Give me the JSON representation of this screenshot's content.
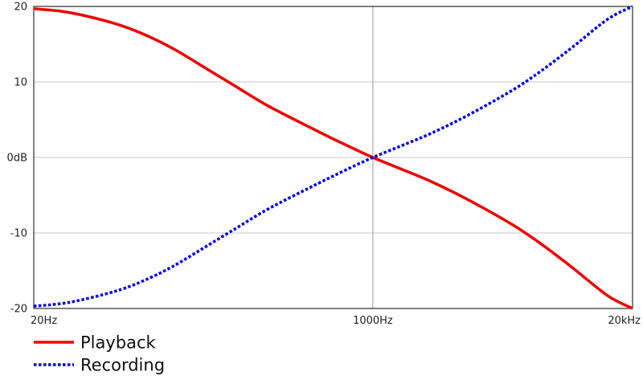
{
  "chart_data": {
    "type": "line",
    "xscale": "log",
    "xlim": [
      20,
      20000
    ],
    "ylim": [
      -20,
      20
    ],
    "grid": true,
    "legend_position": "bottom-left",
    "x_ticks": [
      {
        "value": 20,
        "label": "20Hz"
      },
      {
        "value": 1000,
        "label": "1000Hz"
      },
      {
        "value": 20000,
        "label": "20kHz"
      }
    ],
    "y_ticks": [
      {
        "value": 20,
        "label": "20"
      },
      {
        "value": 10,
        "label": "10"
      },
      {
        "value": 0,
        "label": "0dB"
      },
      {
        "value": -10,
        "label": "-10"
      },
      {
        "value": -20,
        "label": "-20"
      }
    ],
    "series": [
      {
        "name": "Playback",
        "color": "#ee0000",
        "style": "solid",
        "x": [
          20,
          30,
          50,
          70,
          100,
          150,
          200,
          300,
          500,
          700,
          1000,
          1500,
          2000,
          3000,
          5000,
          7000,
          10000,
          15000,
          20000
        ],
        "y": [
          19.7,
          19.2,
          17.8,
          16.4,
          14.4,
          11.6,
          9.6,
          6.8,
          3.8,
          1.9,
          0.0,
          -1.9,
          -3.3,
          -5.6,
          -8.9,
          -11.5,
          -14.6,
          -18.3,
          -20.0
        ]
      },
      {
        "name": "Recording",
        "color": "#0000ee",
        "style": "dotted",
        "x": [
          20,
          30,
          50,
          70,
          100,
          150,
          200,
          300,
          500,
          700,
          1000,
          1500,
          2000,
          3000,
          5000,
          7000,
          10000,
          15000,
          20000
        ],
        "y": [
          -19.7,
          -19.2,
          -17.8,
          -16.4,
          -14.4,
          -11.6,
          -9.6,
          -6.8,
          -3.8,
          -1.9,
          0.0,
          1.9,
          3.3,
          5.6,
          8.9,
          11.5,
          14.6,
          18.3,
          20.0
        ]
      }
    ]
  }
}
